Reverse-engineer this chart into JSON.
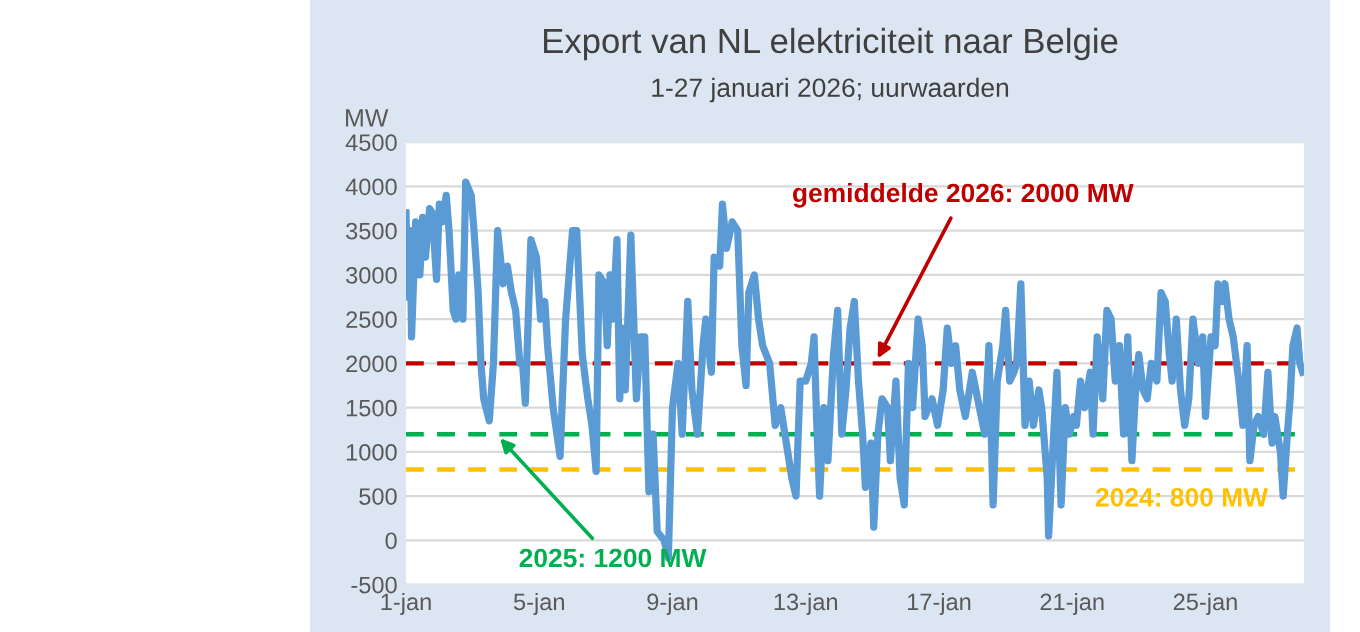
{
  "chart_data": {
    "type": "line",
    "title": "Export van NL elektriciteit naar Belgie",
    "subtitle": "1-27 januari 2026; uurwaarden",
    "ylabel": "MW",
    "x": [
      "2026-01-01T00:00",
      "2026-01-01T01:00",
      "2026-01-01T03:00",
      "2026-01-01T04:00",
      "2026-01-01T07:00",
      "2026-01-01T10:00",
      "2026-01-01T12:00",
      "2026-01-01T14:00",
      "2026-01-01T17:00",
      "2026-01-01T19:00",
      "2026-01-01T22:00",
      "2026-01-02T00:00",
      "2026-01-02T02:00",
      "2026-01-02T05:00",
      "2026-01-02T07:00",
      "2026-01-02T10:00",
      "2026-01-02T12:00",
      "2026-01-02T14:00",
      "2026-01-02T17:00",
      "2026-01-02T19:00",
      "2026-01-02T23:00",
      "2026-01-03T01:00",
      "2026-01-03T04:00",
      "2026-01-03T06:00",
      "2026-01-03T08:00",
      "2026-01-03T12:00",
      "2026-01-03T15:00",
      "2026-01-03T18:00",
      "2026-01-03T22:00",
      "2026-01-04T01:00",
      "2026-01-04T04:00",
      "2026-01-04T07:00",
      "2026-01-04T10:00",
      "2026-01-04T12:00",
      "2026-01-04T14:00",
      "2026-01-04T18:00",
      "2026-01-04T22:00",
      "2026-01-05T01:00",
      "2026-01-05T04:00",
      "2026-01-05T06:00",
      "2026-01-05T10:00",
      "2026-01-05T15:00",
      "2026-01-05T19:00",
      "2026-01-06T00:00",
      "2026-01-06T03:00",
      "2026-01-06T07:00",
      "2026-01-06T11:00",
      "2026-01-06T14:00",
      "2026-01-06T17:00",
      "2026-01-06T19:00",
      "2026-01-06T23:00",
      "2026-01-07T01:00",
      "2026-01-07T03:00",
      "2026-01-07T05:00",
      "2026-01-07T08:00",
      "2026-01-07T10:00",
      "2026-01-07T12:00",
      "2026-01-07T14:00",
      "2026-01-07T18:00",
      "2026-01-07T22:00",
      "2026-01-08T01:00",
      "2026-01-08T04:00",
      "2026-01-08T07:00",
      "2026-01-08T10:00",
      "2026-01-08T13:00",
      "2026-01-08T18:00",
      "2026-01-08T21:00",
      "2026-01-09T00:00",
      "2026-01-09T04:00",
      "2026-01-09T07:00",
      "2026-01-09T11:00",
      "2026-01-09T14:00",
      "2026-01-09T18:00",
      "2026-01-09T22:00",
      "2026-01-10T00:00",
      "2026-01-10T04:00",
      "2026-01-10T06:00",
      "2026-01-10T10:00",
      "2026-01-10T12:00",
      "2026-01-10T15:00",
      "2026-01-10T19:00",
      "2026-01-10T23:00",
      "2026-01-11T02:00",
      "2026-01-11T05:00",
      "2026-01-11T07:00",
      "2026-01-11T11:00",
      "2026-01-11T14:00",
      "2026-01-11T17:00",
      "2026-01-11T22:00",
      "2026-01-12T02:00",
      "2026-01-12T06:00",
      "2026-01-12T11:00",
      "2026-01-12T14:00",
      "2026-01-12T17:00",
      "2026-01-12T20:00",
      "2026-01-13T00:00",
      "2026-01-13T04:00",
      "2026-01-13T06:00",
      "2026-01-13T08:00",
      "2026-01-13T10:00",
      "2026-01-13T13:00",
      "2026-01-13T16:00",
      "2026-01-13T20:00",
      "2026-01-13T23:00",
      "2026-01-14T02:00",
      "2026-01-14T05:00",
      "2026-01-14T08:00",
      "2026-01-14T11:00",
      "2026-01-14T14:00",
      "2026-01-14T17:00",
      "2026-01-14T19:00",
      "2026-01-14T23:00",
      "2026-01-15T01:00",
      "2026-01-15T04:00",
      "2026-01-15T07:00",
      "2026-01-15T11:00",
      "2026-01-15T13:00",
      "2026-01-15T17:00",
      "2026-01-15T20:00",
      "2026-01-15T23:00",
      "2026-01-16T02:00",
      "2026-01-16T05:00",
      "2026-01-16T09:00",
      "2026-01-16T12:00",
      "2026-01-16T14:00",
      "2026-01-16T19:00",
      "2026-01-16T23:00",
      "2026-01-17T03:00",
      "2026-01-17T06:00",
      "2026-01-17T09:00",
      "2026-01-17T12:00",
      "2026-01-17T15:00",
      "2026-01-17T19:00",
      "2026-01-18T00:00",
      "2026-01-18T09:00",
      "2026-01-18T12:00",
      "2026-01-18T15:00",
      "2026-01-18T18:00",
      "2026-01-18T22:00",
      "2026-01-19T00:00",
      "2026-01-19T03:00",
      "2026-01-19T06:00",
      "2026-01-19T08:00",
      "2026-01-19T11:00",
      "2026-01-19T14:00",
      "2026-01-19T17:00",
      "2026-01-19T20:00",
      "2026-01-20T00:00",
      "2026-01-20T02:00",
      "2026-01-20T06:00",
      "2026-01-20T07:00",
      "2026-01-20T10:00",
      "2026-01-20T13:00",
      "2026-01-20T16:00",
      "2026-01-20T19:00",
      "2026-01-20T22:00",
      "2026-01-21T01:00",
      "2026-01-21T03:00",
      "2026-01-21T06:00",
      "2026-01-21T09:00",
      "2026-01-21T13:00",
      "2026-01-21T15:00",
      "2026-01-21T18:00",
      "2026-01-21T22:00",
      "2026-01-22T01:00",
      "2026-01-22T04:00",
      "2026-01-22T07:00",
      "2026-01-22T10:00",
      "2026-01-22T13:00",
      "2026-01-22T16:00",
      "2026-01-22T19:00",
      "2026-01-22T22:00",
      "2026-01-23T00:00",
      "2026-01-23T03:00",
      "2026-01-23T06:00",
      "2026-01-23T09:00",
      "2026-01-23T13:00",
      "2026-01-23T16:00",
      "2026-01-23T19:00",
      "2026-01-23T22:00",
      "2026-01-24T00:00",
      "2026-01-24T03:00",
      "2026-01-24T06:00",
      "2026-01-24T09:00",
      "2026-01-24T12:00",
      "2026-01-24T15:00",
      "2026-01-24T19:00",
      "2026-01-24T22:00",
      "2026-01-25T00:00",
      "2026-01-25T04:00",
      "2026-01-25T07:00",
      "2026-01-25T09:00",
      "2026-01-25T12:00",
      "2026-01-25T14:00",
      "2026-01-25T17:00",
      "2026-01-25T20:00",
      "2026-01-26T00:00",
      "2026-01-26T03:00",
      "2026-01-26T06:00",
      "2026-01-26T08:00",
      "2026-01-26T11:00",
      "2026-01-26T14:00",
      "2026-01-26T18:00",
      "2026-01-26T21:00",
      "2026-01-27T00:00",
      "2026-01-27T02:00",
      "2026-01-27T06:00",
      "2026-01-27T08:00",
      "2026-01-27T11:00",
      "2026-01-27T13:00",
      "2026-01-27T15:00",
      "2026-01-27T18:00",
      "2026-01-27T20:00",
      "2026-01-27T22:00"
    ],
    "series": [
      {
        "color": "#5b9bd5",
        "values": [
          3700,
          2750,
          3500,
          2300,
          3600,
          3000,
          3650,
          3200,
          3750,
          3700,
          2950,
          3800,
          3600,
          3900,
          3500,
          2600,
          2500,
          3000,
          2500,
          4050,
          3900,
          3500,
          2800,
          2000,
          1600,
          1350,
          2000,
          3500,
          2900,
          3100,
          2800,
          2600,
          2000,
          2000,
          1550,
          3400,
          3200,
          2500,
          2700,
          2200,
          1500,
          950,
          2500,
          3500,
          3500,
          2100,
          1600,
          1300,
          780,
          3000,
          2900,
          2200,
          3000,
          2500,
          3400,
          1600,
          2400,
          1700,
          3450,
          1600,
          2300,
          2300,
          550,
          1200,
          100,
          0,
          -200,
          1500,
          2000,
          1200,
          2700,
          1700,
          1200,
          2200,
          2500,
          1900,
          3200,
          3100,
          3800,
          3300,
          3600,
          3500,
          2200,
          1750,
          2800,
          3000,
          2500,
          2200,
          2000,
          1300,
          1500,
          1000,
          700,
          500,
          1800,
          1800,
          2000,
          2300,
          1300,
          500,
          1500,
          900,
          2100,
          2600,
          1200,
          1700,
          2400,
          2700,
          1800,
          1200,
          600,
          1100,
          150,
          1200,
          1600,
          1500,
          900,
          1800,
          700,
          400,
          2000,
          1500,
          2500,
          2200,
          1400,
          1600,
          1300,
          1700,
          2400,
          2000,
          2200,
          1700,
          1400,
          1900,
          1200,
          2200,
          400,
          1800,
          2200,
          2600,
          1800,
          1900,
          2000,
          2900,
          1300,
          1800,
          1300,
          1700,
          1500,
          700,
          50,
          1000,
          1900,
          400,
          1500,
          1200,
          1400,
          1300,
          1800,
          1500,
          1900,
          1200,
          2300,
          1600,
          2600,
          2500,
          1800,
          2200,
          1200,
          2300,
          900,
          1800,
          2100,
          1700,
          1600,
          2000,
          1800,
          2800,
          2700,
          2100,
          1800,
          2500,
          1700,
          1300,
          1600,
          2500,
          2000,
          2300,
          1400,
          2300,
          2200,
          2900,
          2700,
          2900,
          2500,
          2300,
          1800,
          1300,
          2200,
          900,
          1300,
          1400,
          1200,
          1900,
          1100,
          1400,
          1000,
          500,
          1200,
          1600,
          2200,
          2400,
          2000,
          1900
        ]
      }
    ],
    "xlim": [
      "2026-01-01T00:00",
      "2026-01-27T23:00"
    ],
    "xticks": [
      {
        "value": "2026-01-01",
        "label": "1-jan"
      },
      {
        "value": "2026-01-05",
        "label": "5-jan"
      },
      {
        "value": "2026-01-09",
        "label": "9-jan"
      },
      {
        "value": "2026-01-13",
        "label": "13-jan"
      },
      {
        "value": "2026-01-17",
        "label": "17-jan"
      },
      {
        "value": "2026-01-21",
        "label": "21-jan"
      },
      {
        "value": "2026-01-25",
        "label": "25-jan"
      }
    ],
    "ylim": [
      -500,
      4500
    ],
    "yticks": [
      -500,
      0,
      500,
      1000,
      1500,
      2000,
      2500,
      3000,
      3500,
      4000,
      4500
    ],
    "grid": "y",
    "ref_lines": [
      {
        "axis": "y",
        "value": 2000,
        "color": "#c00000",
        "line_style": "dashed"
      },
      {
        "axis": "y",
        "value": 1200,
        "color": "#00b050",
        "line_style": "dashed"
      },
      {
        "axis": "y",
        "value": 800,
        "color": "#ffc000",
        "line_style": "dashed",
        "label": "2024: 800 MW"
      }
    ],
    "annotations": [
      {
        "text": "gemiddelde 2026: 2000 MW",
        "x": "2026-01-15T02:00",
        "y": 2000
      },
      {
        "text": "2025: 1200 MW",
        "x": "2026-01-03T17:00",
        "y": 1200
      }
    ]
  }
}
